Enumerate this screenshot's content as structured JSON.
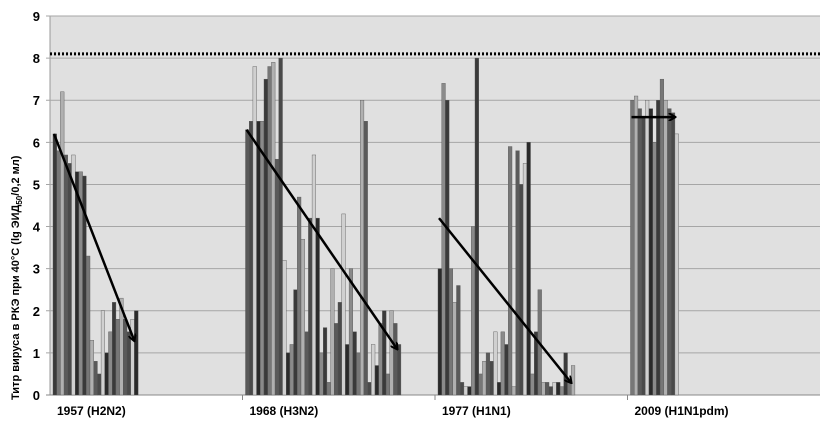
{
  "chart_data": {
    "type": "bar",
    "title": "",
    "xlabel": "",
    "ylabel": "Титр вируса в РКЭ при 40°С (lg  ЭИД",
    "ylabel_sub": "50",
    "ylabel_tail": "/0,2 мл)",
    "ylim": [
      0,
      9
    ],
    "yticks": [
      0,
      1,
      2,
      3,
      4,
      5,
      6,
      7,
      8,
      9
    ],
    "grid": true,
    "reference_line": {
      "value": 8.1,
      "style": "dotted"
    },
    "categories": [
      "1957 (H2N2)",
      "1968 (H3N2)",
      "1977 (H1N1)",
      "2009 (H1N1pdm)"
    ],
    "groups": [
      {
        "values": [
          6.2,
          5.8,
          7.2,
          5.7,
          5.5,
          5.7,
          5.3,
          5.3,
          5.2,
          3.3,
          1.3,
          0.8,
          0.5,
          2.0,
          1.0,
          1.5,
          2.2,
          1.8,
          2.3,
          1.8,
          1.5,
          1.8,
          2.0
        ],
        "trend": [
          6.2,
          1.3
        ]
      },
      {
        "values": [
          6.3,
          6.5,
          7.8,
          6.5,
          6.5,
          7.5,
          7.8,
          7.9,
          5.6,
          8.0,
          3.2,
          1.0,
          1.2,
          2.5,
          4.7,
          3.7,
          1.5,
          4.2,
          5.7,
          4.2,
          1.0,
          1.6,
          0.3,
          3.0,
          1.7,
          2.2,
          4.3,
          1.2,
          3.0,
          1.5,
          1.0,
          7.0,
          6.5,
          0.3,
          1.2,
          0.7,
          1.7,
          2.0,
          0.5,
          2.0,
          1.7,
          1.2
        ],
        "trend": [
          6.3,
          1.1
        ]
      },
      {
        "values": [
          3.0,
          7.4,
          7.0,
          3.0,
          2.2,
          2.6,
          0.3,
          0.2,
          0.2,
          4.0,
          8.0,
          0.5,
          0.8,
          1.0,
          0.8,
          1.5,
          0.3,
          1.5,
          1.2,
          5.9,
          0.2,
          5.8,
          5.0,
          5.5,
          6.0,
          0.5,
          1.5,
          2.5,
          0.3,
          0.3,
          0.2,
          0.3,
          0.3,
          0.2,
          1.0,
          0.3,
          0.7
        ],
        "trend": [
          4.2,
          0.3
        ]
      },
      {
        "values": [
          7.0,
          7.1,
          6.8,
          6.6,
          7.0,
          6.8,
          6.0,
          7.0,
          7.5,
          7.0,
          6.8,
          6.7,
          6.2
        ],
        "trend": [
          6.6,
          6.6
        ]
      }
    ],
    "colors": {
      "plot_bg": "#e0e0e0",
      "grid": "#a6a6a6",
      "bars": [
        "#3a3a3a",
        "#5a5a5a",
        "#2a2a2a",
        "#777777",
        "#4a4a4a",
        "#8a8a8a",
        "#b0b0b0",
        "#d0d0d0"
      ],
      "arrow": "#000000"
    }
  }
}
